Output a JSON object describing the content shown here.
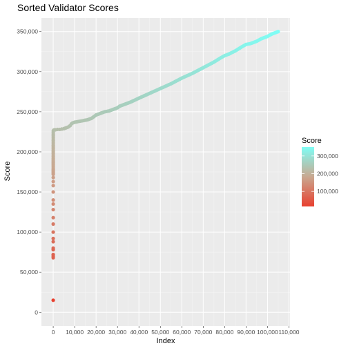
{
  "chart_data": {
    "type": "scatter",
    "title": "Sorted Validator Scores",
    "xlabel": "Index",
    "ylabel": "Score",
    "xlim": [
      -5500,
      110500
    ],
    "ylim": [
      -17000,
      367000
    ],
    "x_ticks": [
      0,
      10000,
      20000,
      30000,
      40000,
      50000,
      60000,
      70000,
      80000,
      90000,
      100000,
      110000
    ],
    "x_tick_labels": [
      "0",
      "10,000",
      "20,000",
      "30,000",
      "40,000",
      "50,000",
      "60,000",
      "70,000",
      "80,000",
      "90,000",
      "100,000",
      "110,000"
    ],
    "y_ticks": [
      0,
      50000,
      100000,
      150000,
      200000,
      250000,
      300000,
      350000
    ],
    "y_tick_labels": [
      "0",
      "50,000",
      "100,000",
      "150,000",
      "200,000",
      "250,000",
      "300,000",
      "350,000"
    ],
    "grid": true,
    "color_scale": {
      "low": "#e8402f",
      "mid": "#c9a890",
      "high": "#7ffdf5",
      "min": 15000,
      "max": 350000
    },
    "legend": {
      "title": "Score",
      "placement": "right",
      "ticks": [
        100000,
        200000,
        300000
      ],
      "tick_labels": [
        "100,000",
        "200,000",
        "300,000"
      ]
    },
    "series": [
      {
        "points": [
          [
            0,
            15000
          ],
          [
            1,
            68000
          ],
          [
            2,
            70000
          ],
          [
            3,
            72000
          ],
          [
            4,
            78000
          ],
          [
            5,
            80000
          ],
          [
            6,
            88000
          ],
          [
            7,
            92000
          ],
          [
            8,
            100000
          ],
          [
            9,
            110000
          ],
          [
            10,
            118000
          ],
          [
            11,
            128000
          ],
          [
            12,
            135000
          ],
          [
            13,
            140000
          ],
          [
            14,
            150000
          ],
          [
            15,
            158000
          ],
          [
            16,
            163000
          ],
          [
            17,
            168000
          ],
          [
            18,
            172000
          ],
          [
            19,
            178000
          ],
          [
            20,
            182000
          ],
          [
            21,
            187000
          ],
          [
            22,
            192000
          ],
          [
            23,
            196000
          ],
          [
            24,
            200000
          ],
          [
            25,
            204000
          ],
          [
            26,
            208000
          ],
          [
            27,
            212000
          ],
          [
            28,
            216000
          ],
          [
            29,
            220000
          ],
          [
            30,
            224000
          ],
          [
            31,
            226000
          ],
          [
            200,
            227000
          ],
          [
            500,
            227500
          ],
          [
            1000,
            227500
          ],
          [
            2000,
            228000
          ],
          [
            3000,
            228000
          ],
          [
            4000,
            228500
          ],
          [
            5000,
            229000
          ],
          [
            6000,
            230000
          ],
          [
            7000,
            231000
          ],
          [
            8000,
            233000
          ],
          [
            8500,
            235000
          ],
          [
            9000,
            236000
          ],
          [
            10000,
            237000
          ],
          [
            12000,
            238000
          ],
          [
            14000,
            239000
          ],
          [
            16000,
            240000
          ],
          [
            18000,
            242000
          ],
          [
            19000,
            244000
          ],
          [
            20000,
            246000
          ],
          [
            22000,
            248000
          ],
          [
            24000,
            250000
          ],
          [
            26000,
            251000
          ],
          [
            28000,
            253000
          ],
          [
            30000,
            255000
          ],
          [
            31000,
            257000
          ],
          [
            33000,
            259000
          ],
          [
            36000,
            262000
          ],
          [
            40000,
            267000
          ],
          [
            45000,
            273000
          ],
          [
            50000,
            279000
          ],
          [
            55000,
            285000
          ],
          [
            60000,
            292000
          ],
          [
            65000,
            298000
          ],
          [
            70000,
            305000
          ],
          [
            75000,
            312000
          ],
          [
            78000,
            317000
          ],
          [
            80000,
            320000
          ],
          [
            82000,
            322000
          ],
          [
            85000,
            326000
          ],
          [
            88000,
            331000
          ],
          [
            90000,
            334000
          ],
          [
            92000,
            335000
          ],
          [
            95000,
            338000
          ],
          [
            97000,
            341000
          ],
          [
            100000,
            344000
          ],
          [
            102000,
            347000
          ],
          [
            104000,
            349000
          ],
          [
            105000,
            350000
          ]
        ]
      }
    ]
  }
}
